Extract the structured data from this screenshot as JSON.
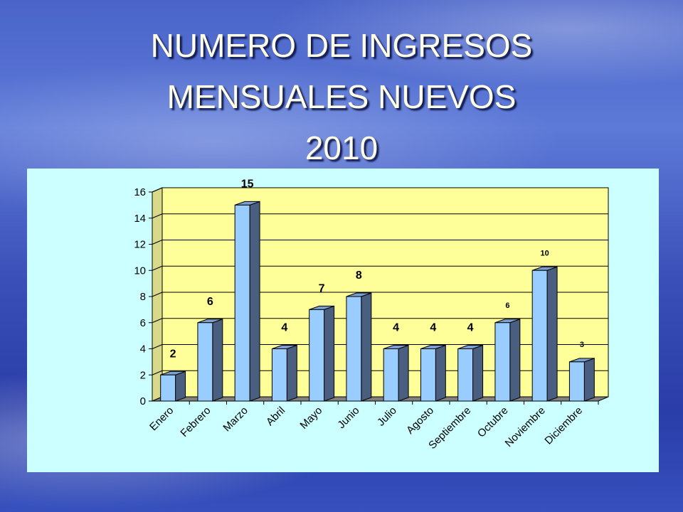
{
  "slide": {
    "title_lines": [
      "NUMERO DE INGRESOS",
      "MENSUALES NUEVOS",
      "2010"
    ]
  },
  "colors": {
    "plot_wall": "#ffff99",
    "bar_front": "#99ccff",
    "bar_side": "#4a5f80",
    "bar_top": "#7ba0cf",
    "panel": "#ccffff",
    "floor": "#808080"
  },
  "chart_data": {
    "type": "bar",
    "style": "3d-column",
    "categories": [
      "Enero",
      "Febrero",
      "Marzo",
      "Abril",
      "Mayo",
      "Junio",
      "Julio",
      "Agosto",
      "Septiembre",
      "Octubre",
      "Noviembre",
      "Diciembre"
    ],
    "values": [
      2,
      6,
      15,
      4,
      7,
      8,
      4,
      4,
      4,
      6,
      10,
      3
    ],
    "data_labels": [
      "2",
      "6",
      "15",
      "4",
      "7",
      "8",
      "4",
      "4",
      "4",
      "6",
      "10",
      "3"
    ],
    "ylim": [
      0,
      16
    ],
    "yticks": [
      0,
      2,
      4,
      6,
      8,
      10,
      12,
      14,
      16
    ],
    "grid": true,
    "legend": "none"
  }
}
